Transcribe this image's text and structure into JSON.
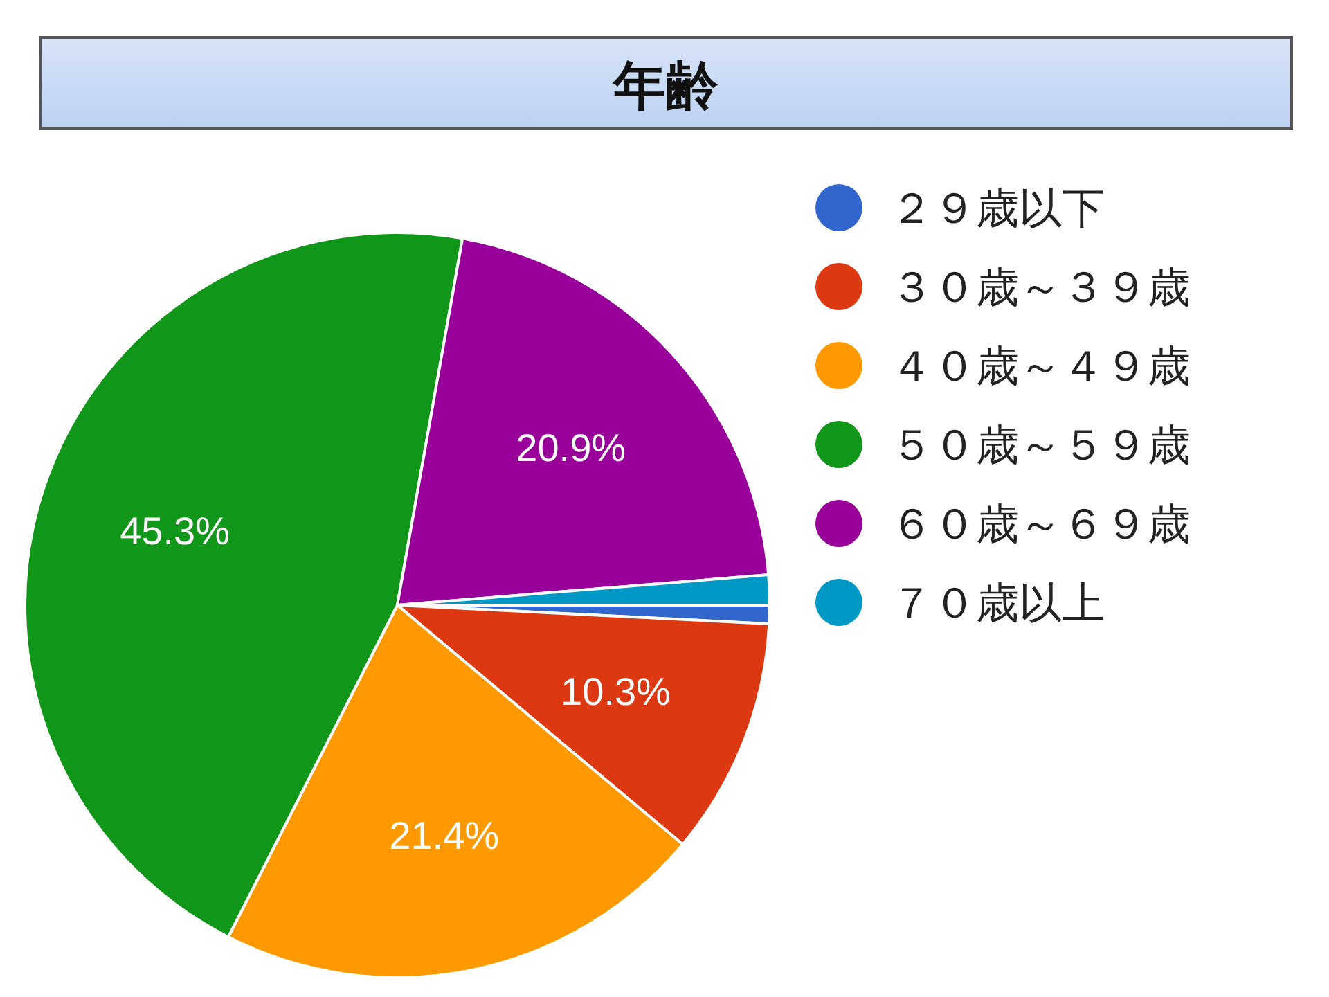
{
  "chart_data": {
    "type": "pie",
    "title": "年齢",
    "categories": [
      "２９歳以下",
      "３０歳～３９歳",
      "４０歳～４９歳",
      "５０歳～５９歳",
      "６０歳～６９歳",
      "７０歳以上"
    ],
    "values": [
      0.8,
      10.3,
      21.4,
      45.3,
      20.9,
      1.3
    ],
    "colors": [
      "#3366cc",
      "#dc3912",
      "#ff9900",
      "#109618",
      "#990099",
      "#0099c6"
    ],
    "value_labels": [
      null,
      "10.3%",
      "21.4%",
      "45.3%",
      "20.9%",
      null
    ],
    "legend": "right"
  }
}
